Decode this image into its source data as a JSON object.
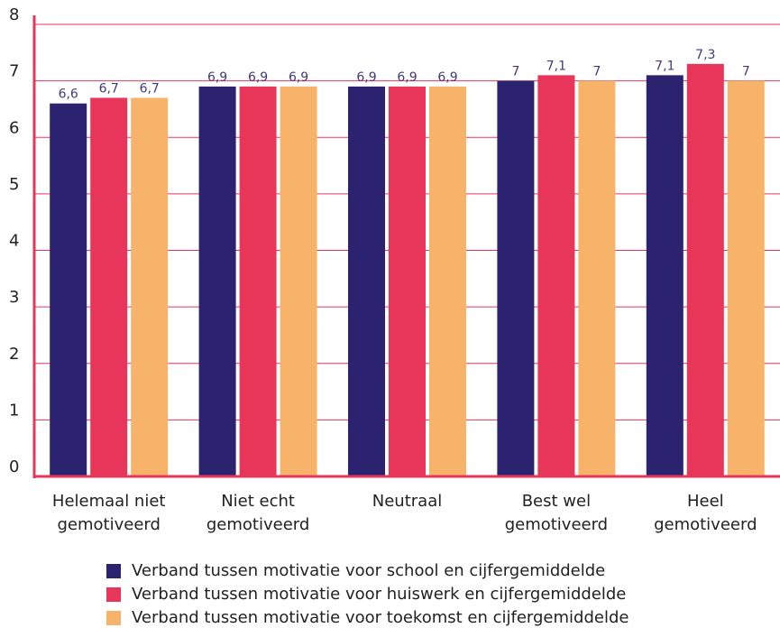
{
  "chart_data": {
    "type": "bar",
    "categories": [
      "Helemaal niet gemotiveerd",
      "Niet echt gemotiveerd",
      "Neutraal",
      "Best wel gemotiveerd",
      "Heel gemotiveerd"
    ],
    "series": [
      {
        "name": "Verband tussen motivatie voor school en cijfergemiddelde",
        "color": "#2b2270",
        "values": [
          6.6,
          6.9,
          6.9,
          7,
          7.1
        ],
        "value_labels": [
          "6,6",
          "6,9",
          "6,9",
          "7",
          "7,1"
        ]
      },
      {
        "name": "Verband tussen motivatie voor huiswerk en cijfergemiddelde",
        "color": "#e8365a",
        "values": [
          6.7,
          6.9,
          6.9,
          7.1,
          7.3
        ],
        "value_labels": [
          "6,7",
          "6,9",
          "6,9",
          "7,1",
          "7,3"
        ]
      },
      {
        "name": "Verband tussen motivatie voor toekomst en cijfergemiddelde",
        "color": "#f7b36a",
        "values": [
          6.7,
          6.9,
          6.9,
          7,
          7
        ],
        "value_labels": [
          "6,7",
          "6,9",
          "6,9",
          "7",
          "7"
        ]
      }
    ],
    "ylim": [
      0,
      8
    ],
    "yticks": [
      0,
      1,
      2,
      3,
      4,
      5,
      6,
      7,
      8
    ],
    "grid": true,
    "legend": "bottom"
  }
}
